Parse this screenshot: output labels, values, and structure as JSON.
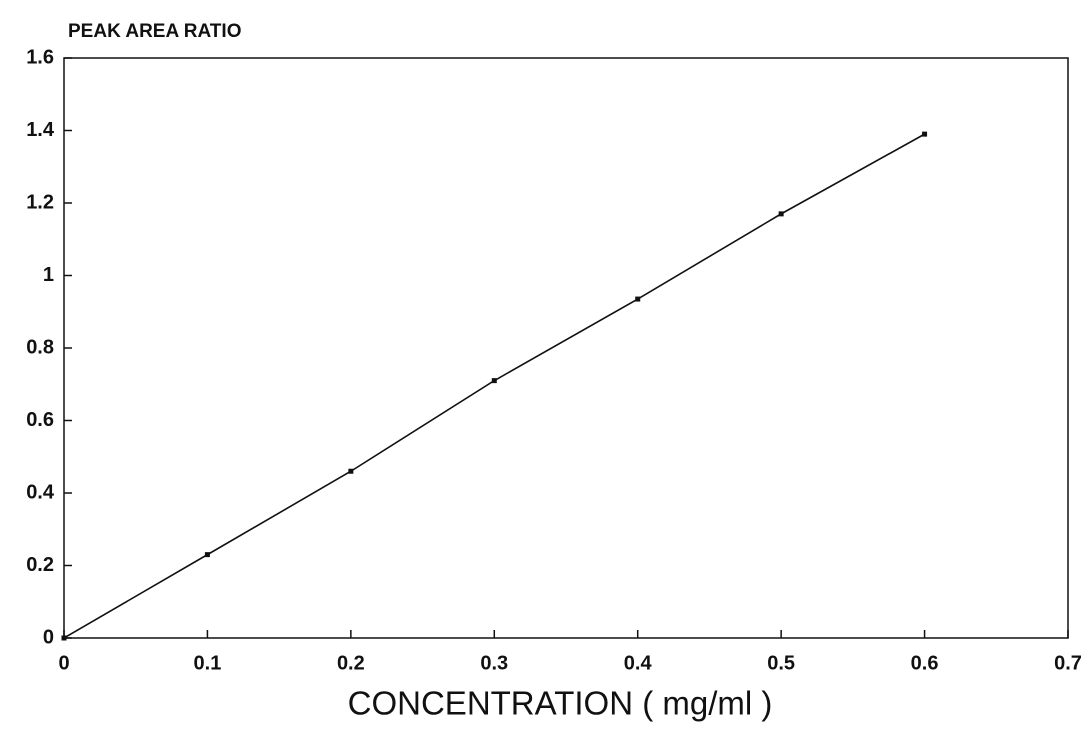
{
  "chart_data": {
    "type": "line",
    "y_label": "PEAK AREA RATIO",
    "x_label": "CONCENTRATION ( mg/ml )",
    "x": [
      0,
      0.1,
      0.2,
      0.3,
      0.4,
      0.5,
      0.6
    ],
    "series": [
      {
        "color": "#111111",
        "values": [
          0,
          0.23,
          0.46,
          0.71,
          0.935,
          1.17,
          1.39
        ]
      }
    ],
    "xlim": [
      0,
      0.7
    ],
    "xticks": [
      0,
      0.1,
      0.2,
      0.3,
      0.4,
      0.5,
      0.6,
      0.7
    ],
    "ylim": [
      0,
      1.6
    ],
    "yticks": [
      0,
      0.2,
      0.4,
      0.6,
      0.8,
      1,
      1.2,
      1.4,
      1.6
    ],
    "grid": false
  }
}
